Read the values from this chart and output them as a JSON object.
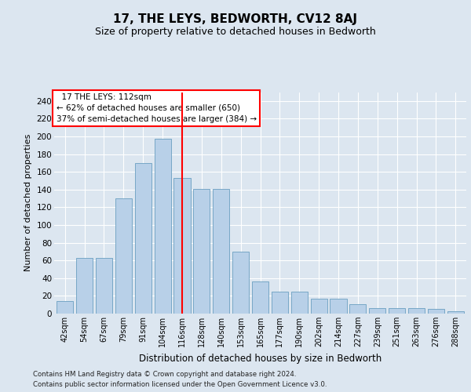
{
  "title": "17, THE LEYS, BEDWORTH, CV12 8AJ",
  "subtitle": "Size of property relative to detached houses in Bedworth",
  "xlabel": "Distribution of detached houses by size in Bedworth",
  "ylabel": "Number of detached properties",
  "categories": [
    "42sqm",
    "54sqm",
    "67sqm",
    "79sqm",
    "91sqm",
    "104sqm",
    "116sqm",
    "128sqm",
    "140sqm",
    "153sqm",
    "165sqm",
    "177sqm",
    "190sqm",
    "202sqm",
    "214sqm",
    "227sqm",
    "239sqm",
    "251sqm",
    "263sqm",
    "276sqm",
    "288sqm"
  ],
  "values": [
    14,
    63,
    63,
    130,
    170,
    197,
    153,
    141,
    141,
    70,
    36,
    25,
    25,
    17,
    17,
    11,
    6,
    6,
    6,
    5,
    3
  ],
  "bar_color": "#b8d0e8",
  "bar_edge_color": "#6a9fc0",
  "vline_color": "red",
  "annotation_title": "17 THE LEYS: 112sqm",
  "annotation_line1": "← 62% of detached houses are smaller (650)",
  "annotation_line2": "37% of semi-detached houses are larger (384) →",
  "annotation_box_color": "white",
  "annotation_box_edge_color": "red",
  "ylim": [
    0,
    250
  ],
  "yticks": [
    0,
    20,
    40,
    60,
    80,
    100,
    120,
    140,
    160,
    180,
    200,
    220,
    240
  ],
  "footer_line1": "Contains HM Land Registry data © Crown copyright and database right 2024.",
  "footer_line2": "Contains public sector information licensed under the Open Government Licence v3.0.",
  "background_color": "#dce6f0",
  "plot_background_color": "#dce6f0",
  "grid_color": "#ffffff",
  "title_fontsize": 11,
  "subtitle_fontsize": 9
}
